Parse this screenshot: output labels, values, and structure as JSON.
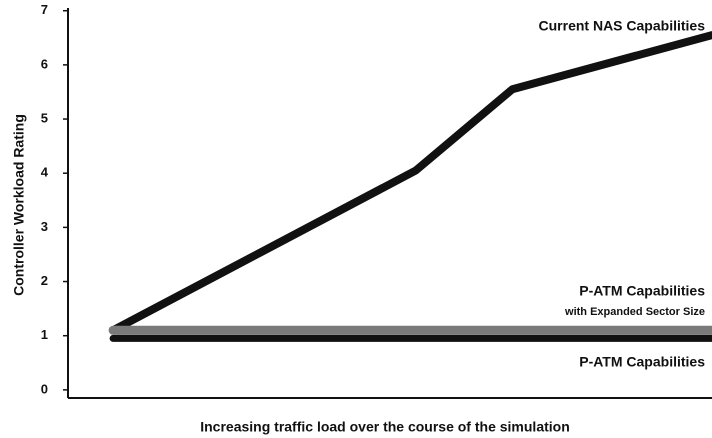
{
  "chart_data": {
    "type": "line",
    "y_label": "Controller Workload Rating",
    "x_label": "Increasing traffic load over the course of the simulation",
    "xlim": [
      0,
      100
    ],
    "ylim": [
      -0.15,
      7.05
    ],
    "yticks": [
      0,
      1,
      2,
      3,
      4,
      5,
      6,
      7
    ],
    "series": [
      {
        "name": "Current NAS Capabilities",
        "color": "#111111",
        "x": [
          7,
          54,
          69,
          100
        ],
        "values": [
          1.1,
          4.05,
          5.55,
          6.55
        ]
      },
      {
        "name": "P-ATM Capabilities",
        "note": "with Expanded Sector Size",
        "color": "#7a7a7a",
        "x": [
          7,
          100
        ],
        "values": [
          1.1,
          1.1
        ]
      },
      {
        "name": "P-ATM Capabilities",
        "color": "#111111",
        "x": [
          7,
          100
        ],
        "values": [
          0.95,
          0.95
        ]
      }
    ]
  }
}
